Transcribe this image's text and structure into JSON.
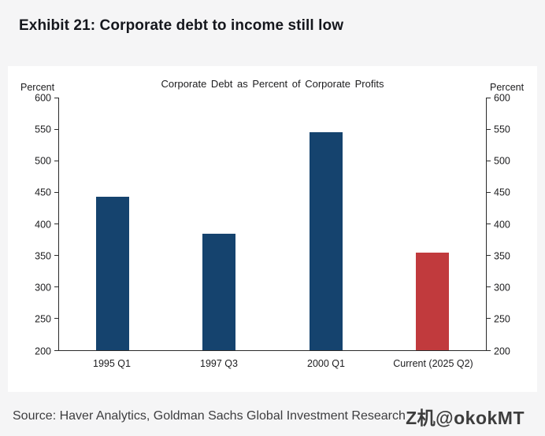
{
  "page": {
    "title": "Exhibit 21: Corporate debt to income still low",
    "source": "Source: Haver Analytics, Goldman Sachs Global Investment Research",
    "watermark": "Z机@okokMT"
  },
  "colors": {
    "bar_navy": "#15436e",
    "bar_red": "#c13a3d",
    "axis": "#2a2a2a",
    "panel_bg": "#ffffff",
    "page_bg": "#f5f5f6"
  },
  "chart_data": {
    "type": "bar",
    "title": "Corporate Debt as Percent of Corporate Profits",
    "left_axis_label": "Percent",
    "right_axis_label": "Percent",
    "categories": [
      "1995 Q1",
      "1997 Q3",
      "2000 Q1",
      "Current (2025 Q2)"
    ],
    "values": [
      443,
      385,
      545,
      355
    ],
    "bar_colors": [
      "#15436e",
      "#15436e",
      "#15436e",
      "#c13a3d"
    ],
    "ylim": [
      200,
      600
    ],
    "yticks": [
      200,
      250,
      300,
      350,
      400,
      450,
      500,
      550,
      600
    ],
    "grid": false,
    "legend": "none",
    "xlabel": "",
    "ylabel": "Percent"
  }
}
